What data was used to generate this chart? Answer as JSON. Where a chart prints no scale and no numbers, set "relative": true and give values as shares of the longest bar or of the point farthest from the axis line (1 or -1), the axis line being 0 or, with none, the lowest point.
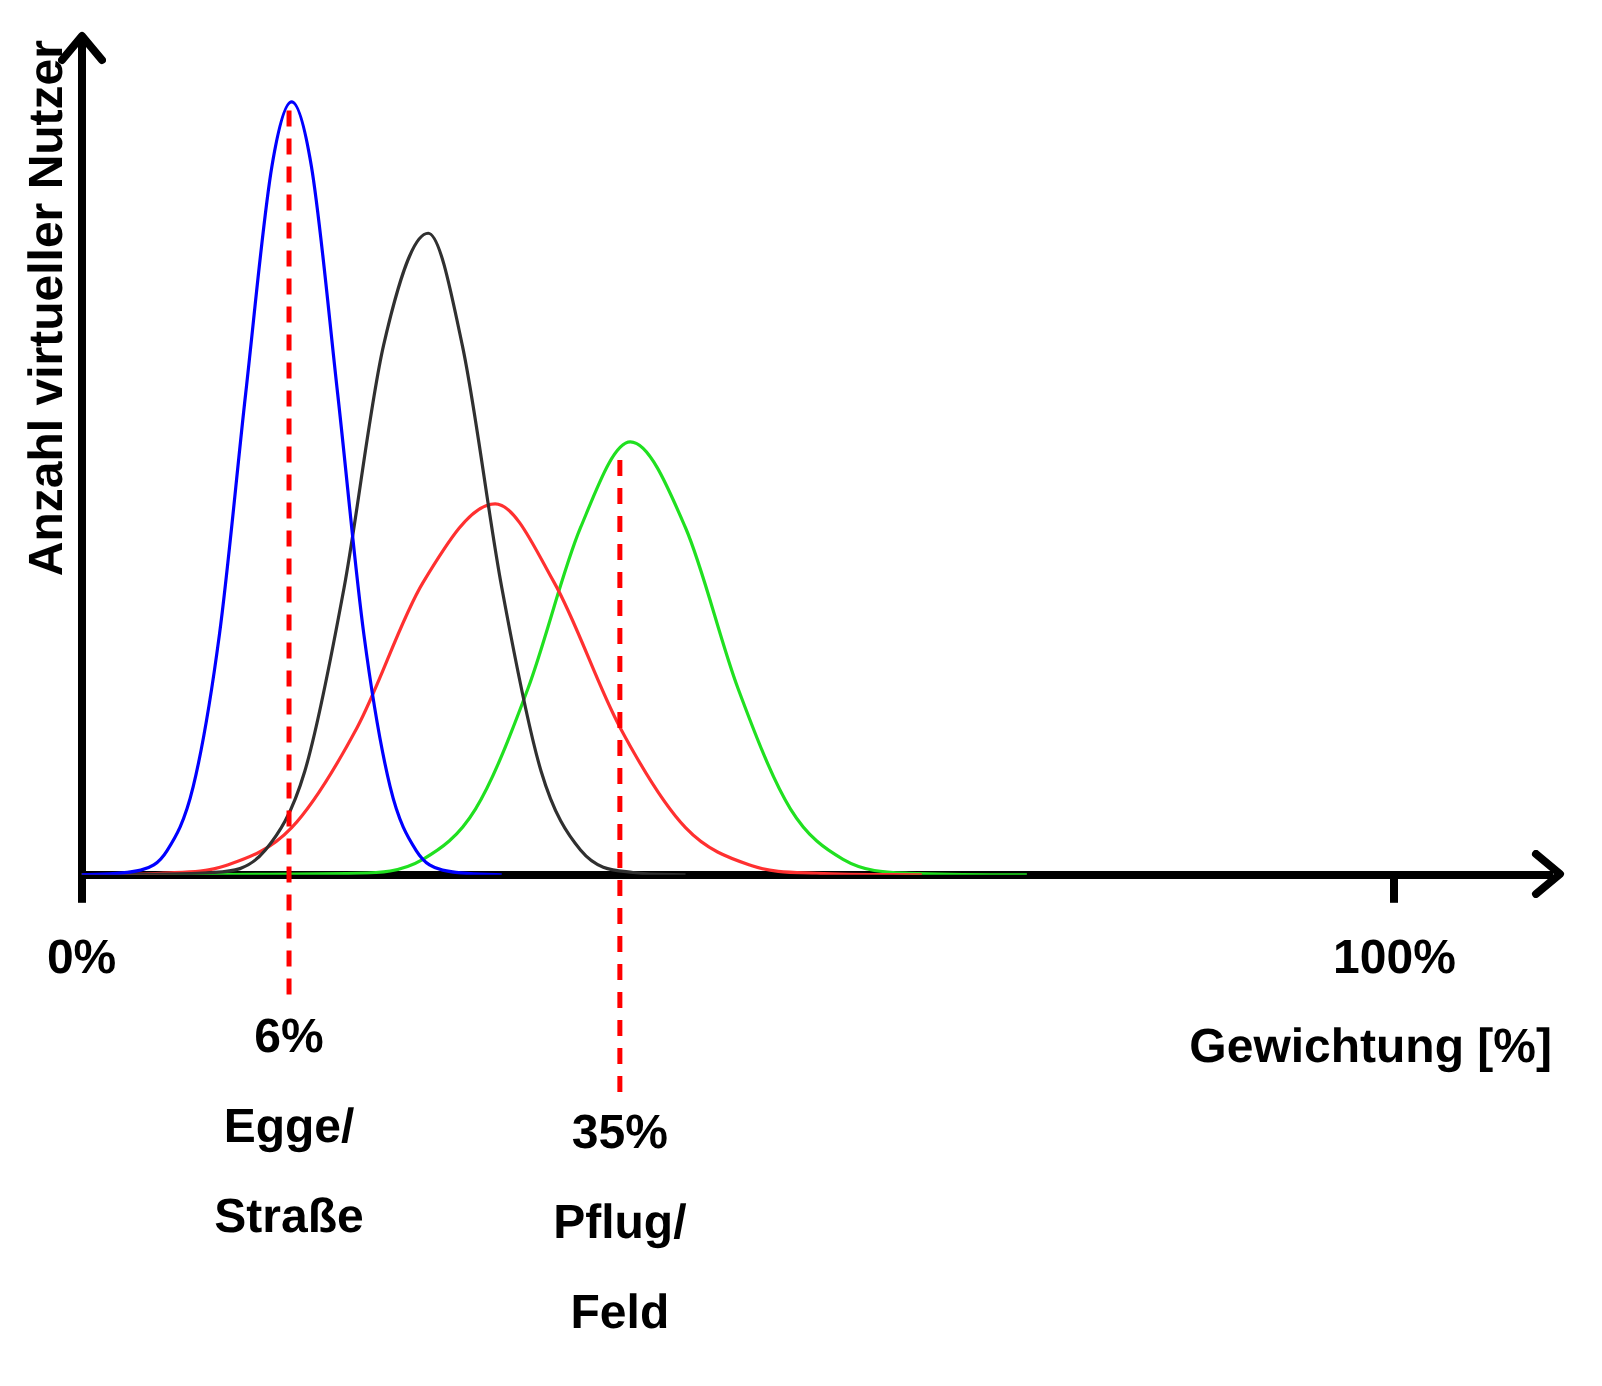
{
  "chart_data": {
    "type": "line",
    "relative": true,
    "xlabel": "Gewichtung [%]",
    "ylabel": "Anzahl virtueller Nutzer",
    "xlim": [
      0,
      112
    ],
    "xticks": [
      {
        "value": 0,
        "label": "0%"
      },
      {
        "value": 100,
        "label": "100%"
      }
    ],
    "grid": false,
    "legend": false,
    "marker": "none",
    "line_style": "solid",
    "series": [
      {
        "color": "#0000ff",
        "x": [
          0,
          4.5,
          6.5,
          8.5,
          10.5,
          12.5,
          14.5,
          16,
          17.5,
          19.5,
          21.5,
          23.5,
          25.5,
          27.5,
          32
        ],
        "values": [
          0,
          0.006,
          0.031,
          0.114,
          0.311,
          0.623,
          0.917,
          1,
          0.917,
          0.623,
          0.311,
          0.114,
          0.031,
          0.006,
          0
        ]
      },
      {
        "color": "#303030",
        "x": [
          0,
          10,
          14,
          17,
          20,
          23,
          26.4,
          29,
          32,
          35,
          38,
          42,
          46
        ],
        "values": [
          0,
          0.003,
          0.032,
          0.134,
          0.372,
          0.685,
          0.83,
          0.685,
          0.372,
          0.134,
          0.032,
          0.003,
          0
        ]
      },
      {
        "color": "#ff3030",
        "x": [
          0,
          6,
          11,
          16,
          21,
          26,
          31.5,
          36,
          41,
          46,
          51,
          56,
          64
        ],
        "values": [
          0,
          0.002,
          0.012,
          0.061,
          0.191,
          0.378,
          0.48,
          0.378,
          0.191,
          0.061,
          0.012,
          0.002,
          0
        ]
      },
      {
        "color": "#20e020",
        "x": [
          0,
          21,
          26,
          30,
          34,
          38,
          41.8,
          46,
          50,
          54,
          58,
          63,
          72
        ],
        "values": [
          0,
          0.002,
          0.02,
          0.085,
          0.241,
          0.449,
          0.56,
          0.449,
          0.241,
          0.085,
          0.02,
          0.002,
          0
        ]
      }
    ],
    "ref_lines": [
      {
        "axis": "x",
        "value": 15.8,
        "label": "6%\nEgge/\nStraße",
        "color": "#ff0000",
        "line_style": "dashed"
      },
      {
        "axis": "x",
        "value": 41,
        "label": "35%\nPflug/\nFeld",
        "color": "#ff0000",
        "line_style": "dashed"
      }
    ]
  }
}
